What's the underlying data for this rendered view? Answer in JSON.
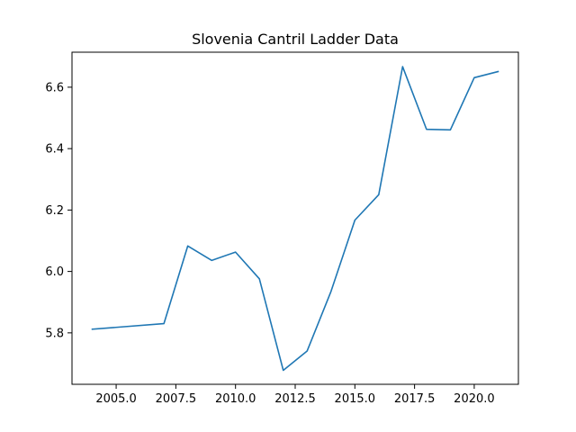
{
  "chart_data": {
    "type": "line",
    "title": "Slovenia Cantril Ladder Data",
    "xlabel": "",
    "ylabel": "",
    "xlim": [
      2003.15,
      2021.85
    ],
    "ylim": [
      5.6325,
      6.714
    ],
    "grid": false,
    "x_ticks": [
      2005.0,
      2007.5,
      2010.0,
      2012.5,
      2015.0,
      2017.5,
      2020.0
    ],
    "x_tick_labels": [
      "2005.0",
      "2007.5",
      "2010.0",
      "2012.5",
      "2015.0",
      "2017.5",
      "2020.0"
    ],
    "y_ticks": [
      5.8,
      6.0,
      6.2,
      6.4,
      6.6
    ],
    "y_tick_labels": [
      "5.8",
      "6.0",
      "6.2",
      "6.4",
      "6.6"
    ],
    "series": [
      {
        "color": "#1f77b4",
        "x": [
          2004,
          2007,
          2008,
          2009,
          2010,
          2011,
          2012,
          2013,
          2014,
          2015,
          2016,
          2017,
          2018,
          2019,
          2020,
          2021
        ],
        "y": [
          5.812,
          5.83,
          6.083,
          6.036,
          6.063,
          5.976,
          5.678,
          5.741,
          5.935,
          6.167,
          6.25,
          6.667,
          6.463,
          6.461,
          6.631,
          6.651
        ]
      }
    ]
  }
}
